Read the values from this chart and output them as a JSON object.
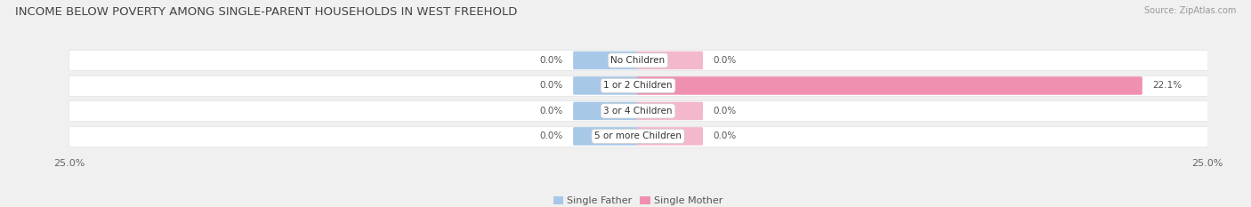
{
  "title": "INCOME BELOW POVERTY AMONG SINGLE-PARENT HOUSEHOLDS IN WEST FREEHOLD",
  "source": "Source: ZipAtlas.com",
  "categories": [
    "No Children",
    "1 or 2 Children",
    "3 or 4 Children",
    "5 or more Children"
  ],
  "single_father_values": [
    0.0,
    0.0,
    0.0,
    0.0
  ],
  "single_mother_values": [
    0.0,
    22.1,
    0.0,
    0.0
  ],
  "x_max": 25.0,
  "x_min": -25.0,
  "father_color": "#a8c8e8",
  "mother_color": "#f090b0",
  "mother_color_stub": "#f4b8cc",
  "father_label": "Single Father",
  "mother_label": "Single Mother",
  "background_color": "#f0f0f0",
  "row_bg_color": "#ffffff",
  "title_fontsize": 9.5,
  "source_fontsize": 7,
  "label_fontsize": 7.5,
  "value_fontsize": 7.5,
  "axis_label_fontsize": 8,
  "legend_fontsize": 8,
  "stub_size": 2.8
}
